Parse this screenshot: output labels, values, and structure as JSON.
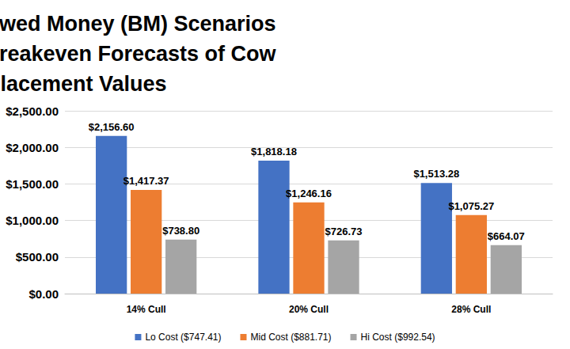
{
  "chart_data": {
    "type": "bar",
    "title": "The Nine Borrowed Money (BM) Scenarios Showing The Breakeven Forecasts of Cow Replacement Values",
    "categories": [
      "14% Cull",
      "20% Cull",
      "28% Cull"
    ],
    "series": [
      {
        "name": "Lo Cost ($747.41)",
        "color": "#4472c4",
        "values": [
          2156.6,
          1818.18,
          1513.28
        ],
        "value_labels": [
          "$2,156.60",
          "$1,818.18",
          "$1,513.28"
        ]
      },
      {
        "name": "Mid Cost ($881.71)",
        "color": "#ed7d31",
        "values": [
          1417.37,
          1246.16,
          1075.27
        ],
        "value_labels": [
          "$1,417.37",
          "$1,246.16",
          "$1,075.27"
        ]
      },
      {
        "name": "Hi Cost ($992.54)",
        "color": "#a5a5a5",
        "values": [
          738.8,
          726.73,
          664.07
        ],
        "value_labels": [
          "$738.80",
          "$726.73",
          "$664.07"
        ]
      }
    ],
    "ylim": [
      0,
      2500
    ],
    "yticks": [
      {
        "value": 0,
        "label": "$0.00"
      },
      {
        "value": 500,
        "label": "$500.00"
      },
      {
        "value": 1000,
        "label": "$1,000.00"
      },
      {
        "value": 1500,
        "label": "$1,500.00"
      },
      {
        "value": 2000,
        "label": "$2,000.00"
      },
      {
        "value": 2500,
        "label": "$2,500.00"
      }
    ],
    "grid": true,
    "legend": "bottom",
    "data_labels": true
  }
}
